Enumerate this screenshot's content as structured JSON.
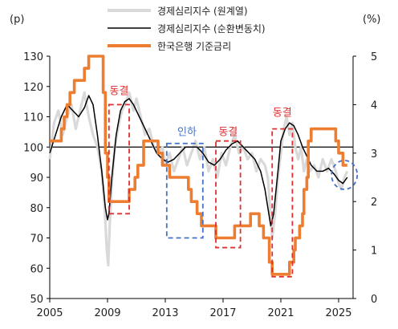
{
  "chart_data": {
    "type": "line",
    "left_unit": "(p)",
    "right_unit": "(%)",
    "x_ticks": [
      2005,
      2009,
      2013,
      2017,
      2021,
      2025
    ],
    "left_axis": {
      "ylim": [
        50,
        130
      ],
      "ticks": [
        50,
        60,
        70,
        80,
        90,
        100,
        110,
        120,
        130
      ]
    },
    "right_axis": {
      "ylim": [
        0,
        5
      ],
      "ticks": [
        0,
        1,
        2,
        3,
        4,
        5
      ]
    },
    "reference_line": 100,
    "legend_position": "top-center",
    "series": [
      {
        "name": "경제심리지수 (원계열)",
        "axis": "left",
        "color": "#d9d9d9",
        "x": [
          2005.0,
          2005.3,
          2005.6,
          2005.9,
          2006.2,
          2006.5,
          2006.8,
          2007.1,
          2007.4,
          2007.7,
          2008.0,
          2008.3,
          2008.6,
          2008.8,
          2008.95,
          2009.05,
          2009.15,
          2009.3,
          2009.5,
          2009.8,
          2010.0,
          2010.2,
          2010.5,
          2010.8,
          2011.0,
          2011.3,
          2011.6,
          2011.9,
          2012.2,
          2012.5,
          2012.8,
          2013.0,
          2013.3,
          2013.6,
          2013.9,
          2014.2,
          2014.5,
          2014.8,
          2015.1,
          2015.4,
          2015.7,
          2016.0,
          2016.3,
          2016.6,
          2016.9,
          2017.2,
          2017.5,
          2017.8,
          2018.1,
          2018.4,
          2018.7,
          2019.0,
          2019.3,
          2019.6,
          2019.9,
          2020.1,
          2020.25,
          2020.4,
          2020.6,
          2020.8,
          2021.0,
          2021.2,
          2021.4,
          2021.6,
          2021.8,
          2022.0,
          2022.2,
          2022.4,
          2022.6,
          2022.8,
          2023.0,
          2023.3,
          2023.6,
          2023.9,
          2024.2,
          2024.5,
          2024.8,
          2025.0,
          2025.2,
          2025.4,
          2025.6
        ],
        "values": [
          96,
          108,
          112,
          104,
          110,
          114,
          106,
          112,
          118,
          110,
          104,
          100,
          92,
          80,
          66,
          61,
          74,
          88,
          100,
          108,
          112,
          114,
          118,
          112,
          116,
          110,
          104,
          106,
          100,
          98,
          100,
          94,
          98,
          92,
          96,
          100,
          94,
          98,
          102,
          96,
          100,
          92,
          96,
          90,
          98,
          94,
          100,
          104,
          98,
          100,
          96,
          98,
          92,
          96,
          94,
          90,
          80,
          70,
          78,
          90,
          98,
          106,
          110,
          104,
          108,
          100,
          96,
          100,
          92,
          96,
          92,
          94,
          90,
          96,
          92,
          96,
          92,
          88,
          86,
          90,
          92
        ]
      },
      {
        "name": "경제심리지수 (순환변동치)",
        "axis": "left",
        "color": "#000000",
        "x": [
          2005.0,
          2005.4,
          2005.8,
          2006.2,
          2006.6,
          2007.0,
          2007.4,
          2007.7,
          2008.0,
          2008.3,
          2008.6,
          2008.85,
          2009.0,
          2009.1,
          2009.3,
          2009.6,
          2009.9,
          2010.2,
          2010.5,
          2010.8,
          2011.2,
          2011.6,
          2012.0,
          2012.4,
          2012.8,
          2013.2,
          2013.6,
          2014.0,
          2014.4,
          2014.8,
          2015.2,
          2015.6,
          2016.0,
          2016.4,
          2016.8,
          2017.2,
          2017.6,
          2018.0,
          2018.4,
          2018.8,
          2019.2,
          2019.6,
          2019.9,
          2020.1,
          2020.3,
          2020.5,
          2020.8,
          2021.0,
          2021.3,
          2021.6,
          2021.9,
          2022.2,
          2022.5,
          2022.8,
          2023.1,
          2023.5,
          2023.9,
          2024.3,
          2024.7,
          2025.0,
          2025.3,
          2025.6
        ],
        "values": [
          98,
          104,
          110,
          114,
          112,
          110,
          113,
          117,
          114,
          104,
          92,
          80,
          76,
          78,
          90,
          104,
          112,
          115,
          116,
          114,
          110,
          106,
          102,
          98,
          96,
          95,
          96,
          98,
          100,
          100,
          100,
          98,
          95,
          94,
          96,
          99,
          101,
          102,
          100,
          98,
          96,
          92,
          86,
          80,
          74,
          78,
          92,
          102,
          106,
          108,
          107,
          104,
          100,
          97,
          94,
          92,
          92,
          93,
          91,
          89,
          88,
          90
        ]
      },
      {
        "name": "한국은행 기준금리",
        "axis": "right",
        "color": "#ed7d31",
        "x": [
          2005.0,
          2005.8,
          2005.8,
          2006.0,
          2006.0,
          2006.2,
          2006.2,
          2006.4,
          2006.4,
          2006.7,
          2006.7,
          2007.4,
          2007.4,
          2007.7,
          2007.7,
          2008.7,
          2008.7,
          2008.85,
          2008.85,
          2009.0,
          2009.0,
          2009.1,
          2009.1,
          2010.5,
          2010.5,
          2010.9,
          2010.9,
          2011.1,
          2011.1,
          2011.5,
          2011.5,
          2012.5,
          2012.5,
          2012.8,
          2012.8,
          2013.3,
          2013.3,
          2014.6,
          2014.6,
          2014.8,
          2014.8,
          2015.2,
          2015.2,
          2015.5,
          2015.5,
          2016.5,
          2016.5,
          2017.8,
          2017.8,
          2018.9,
          2018.9,
          2019.5,
          2019.5,
          2019.8,
          2019.8,
          2020.2,
          2020.2,
          2020.4,
          2020.4,
          2021.6,
          2021.6,
          2021.9,
          2021.9,
          2022.0,
          2022.0,
          2022.3,
          2022.3,
          2022.5,
          2022.5,
          2022.6,
          2022.6,
          2022.8,
          2022.8,
          2022.9,
          2022.9,
          2023.1,
          2023.1,
          2024.8,
          2024.8,
          2025.0,
          2025.0,
          2025.3,
          2025.3,
          2025.6
        ],
        "values": [
          3.25,
          3.25,
          3.5,
          3.5,
          3.75,
          3.75,
          4.0,
          4.0,
          4.25,
          4.25,
          4.5,
          4.5,
          4.75,
          4.75,
          5.0,
          5.0,
          4.25,
          4.25,
          3.0,
          3.0,
          2.5,
          2.5,
          2.0,
          2.0,
          2.25,
          2.25,
          2.5,
          2.5,
          2.75,
          2.75,
          3.25,
          3.25,
          3.0,
          3.0,
          2.75,
          2.75,
          2.5,
          2.5,
          2.25,
          2.25,
          2.0,
          2.0,
          1.75,
          1.75,
          1.5,
          1.5,
          1.25,
          1.25,
          1.5,
          1.5,
          1.75,
          1.75,
          1.5,
          1.5,
          1.25,
          1.25,
          0.75,
          0.75,
          0.5,
          0.5,
          0.75,
          0.75,
          1.0,
          1.0,
          1.25,
          1.25,
          1.5,
          1.5,
          1.75,
          1.75,
          2.25,
          2.25,
          2.5,
          2.5,
          3.25,
          3.25,
          3.5,
          3.5,
          3.25,
          3.25,
          3.0,
          3.0,
          2.75,
          2.75
        ]
      }
    ],
    "annotations": [
      {
        "label": "동결",
        "color": "#e03030",
        "x0": 2009.1,
        "x1": 2010.5,
        "y0_right": 1.75,
        "y1_right": 4.0,
        "label_x": 2009.8,
        "label_y_right": 4.3
      },
      {
        "label": "인하",
        "color": "#4472c4",
        "x0": 2013.1,
        "x1": 2015.6,
        "y0_right": 1.25,
        "y1_right": 3.2,
        "label_x": 2014.5,
        "label_y_right": 3.45
      },
      {
        "label": "동결",
        "color": "#e03030",
        "x0": 2016.5,
        "x1": 2018.2,
        "y0_right": 1.05,
        "y1_right": 3.25,
        "label_x": 2017.35,
        "label_y_right": 3.45
      },
      {
        "label": "동결",
        "color": "#e03030",
        "x0": 2020.4,
        "x1": 2021.8,
        "y0_right": 0.45,
        "y1_right": 3.5,
        "label_x": 2021.1,
        "label_y_right": 3.85
      }
    ],
    "highlight_circle": {
      "color": "#4472c4",
      "x": 2025.4,
      "y_right": 2.55
    }
  }
}
